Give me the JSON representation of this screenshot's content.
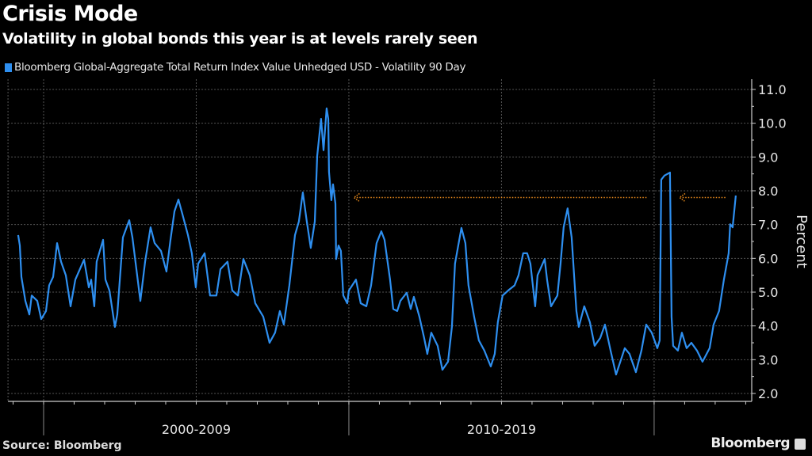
{
  "header": {
    "title": "Crisis Mode",
    "subtitle": "Volatility in global bonds this year is at levels rarely seen"
  },
  "footer": {
    "source": "Source: Bloomberg",
    "brand": "Bloomberg"
  },
  "colors": {
    "background": "#000000",
    "series": "#2e8ff0",
    "annotation": "#e8891b",
    "grid": "#555555",
    "axis": "#cccccc"
  },
  "chart_data": {
    "type": "line",
    "title": "Crisis Mode",
    "subtitle": "Volatility in global bonds this year is at levels rarely seen",
    "ylabel": "Percent",
    "ylim": [
      2.0,
      11.0
    ],
    "yticks": [
      "2.0",
      "3.0",
      "4.0",
      "5.0",
      "6.0",
      "7.0",
      "8.0",
      "9.0",
      "10.0",
      "11.0"
    ],
    "xlim": [
      "1998-11-01",
      "2023-02-01"
    ],
    "x_category_labels": [
      {
        "label": "2000-2009",
        "from": "2000-01-01",
        "to": "2010-01-01"
      },
      {
        "label": "2010-2019",
        "from": "2010-01-01",
        "to": "2020-01-01"
      }
    ],
    "legend": "top-left",
    "grid": true,
    "series": [
      {
        "name": "Bloomberg Global-Aggregate Total Return Index Value Unhedged USD - Volatility 90 Day",
        "points": [
          [
            "1999-03-01",
            6.69
          ],
          [
            "1999-03-20",
            6.38
          ],
          [
            "1999-04-09",
            5.45
          ],
          [
            "1999-05-26",
            4.74
          ],
          [
            "1999-07-13",
            4.34
          ],
          [
            "1999-08-11",
            4.9
          ],
          [
            "1999-10-16",
            4.74
          ],
          [
            "1999-12-03",
            4.2
          ],
          [
            "2000-01-29",
            4.44
          ],
          [
            "2000-03-06",
            5.2
          ],
          [
            "2000-04-23",
            5.45
          ],
          [
            "2000-06-10",
            6.45
          ],
          [
            "2000-07-27",
            5.9
          ],
          [
            "2000-09-23",
            5.5
          ],
          [
            "2000-11-19",
            4.58
          ],
          [
            "2001-01-15",
            5.37
          ],
          [
            "2001-04-28",
            5.96
          ],
          [
            "2001-06-24",
            5.14
          ],
          [
            "2001-07-22",
            5.37
          ],
          [
            "2001-08-29",
            4.58
          ],
          [
            "2001-09-27",
            5.9
          ],
          [
            "2001-12-12",
            6.55
          ],
          [
            "2002-01-10",
            5.37
          ],
          [
            "2002-02-27",
            5.05
          ],
          [
            "2002-05-02",
            3.97
          ],
          [
            "2002-05-30",
            4.34
          ],
          [
            "2002-08-06",
            6.62
          ],
          [
            "2002-10-21",
            7.13
          ],
          [
            "2002-11-28",
            6.62
          ],
          [
            "2003-03-02",
            4.74
          ],
          [
            "2003-04-28",
            5.9
          ],
          [
            "2003-07-03",
            6.92
          ],
          [
            "2003-08-20",
            6.45
          ],
          [
            "2003-11-05",
            6.22
          ],
          [
            "2004-01-10",
            5.61
          ],
          [
            "2004-02-27",
            6.55
          ],
          [
            "2004-04-14",
            7.39
          ],
          [
            "2004-05-31",
            7.74
          ],
          [
            "2004-07-17",
            7.32
          ],
          [
            "2004-09-23",
            6.69
          ],
          [
            "2004-11-09",
            6.15
          ],
          [
            "2004-12-26",
            5.14
          ],
          [
            "2005-01-24",
            5.84
          ],
          [
            "2005-04-09",
            6.15
          ],
          [
            "2005-06-14",
            4.9
          ],
          [
            "2005-08-29",
            4.9
          ],
          [
            "2005-10-16",
            5.68
          ],
          [
            "2006-01-10",
            5.9
          ],
          [
            "2006-03-06",
            5.05
          ],
          [
            "2006-05-12",
            4.9
          ],
          [
            "2006-07-17",
            5.98
          ],
          [
            "2006-10-02",
            5.5
          ],
          [
            "2006-12-07",
            4.67
          ],
          [
            "2007-03-11",
            4.27
          ],
          [
            "2007-05-25",
            3.5
          ],
          [
            "2007-08-01",
            3.8
          ],
          [
            "2007-09-27",
            4.44
          ],
          [
            "2007-11-14",
            4.04
          ],
          [
            "2008-01-19",
            5.2
          ],
          [
            "2008-03-25",
            6.69
          ],
          [
            "2008-05-11",
            7.09
          ],
          [
            "2008-06-28",
            7.95
          ],
          [
            "2008-08-15",
            7.09
          ],
          [
            "2008-10-02",
            6.31
          ],
          [
            "2008-11-19",
            7.09
          ],
          [
            "2008-12-17",
            9.03
          ],
          [
            "2009-02-03",
            10.13
          ],
          [
            "2009-03-02",
            9.2
          ],
          [
            "2009-04-09",
            10.44
          ],
          [
            "2009-04-28",
            10.13
          ],
          [
            "2009-05-07",
            8.56
          ],
          [
            "2009-06-05",
            7.72
          ],
          [
            "2009-06-24",
            8.19
          ],
          [
            "2009-07-22",
            7.62
          ],
          [
            "2009-08-01",
            5.98
          ],
          [
            "2009-08-29",
            6.38
          ],
          [
            "2009-09-27",
            6.22
          ],
          [
            "2009-10-25",
            4.9
          ],
          [
            "2009-12-12",
            4.67
          ],
          [
            "2010-01-01",
            5.05
          ],
          [
            "2010-03-25",
            5.37
          ],
          [
            "2010-05-21",
            4.67
          ],
          [
            "2010-07-27",
            4.58
          ],
          [
            "2010-09-23",
            5.2
          ],
          [
            "2010-11-28",
            6.45
          ],
          [
            "2011-01-24",
            6.8
          ],
          [
            "2011-03-01",
            6.55
          ],
          [
            "2011-05-07",
            5.37
          ],
          [
            "2011-06-14",
            4.5
          ],
          [
            "2011-08-01",
            4.44
          ],
          [
            "2011-09-08",
            4.74
          ],
          [
            "2011-11-23",
            4.98
          ],
          [
            "2012-01-10",
            4.5
          ],
          [
            "2012-02-17",
            4.86
          ],
          [
            "2012-04-23",
            4.27
          ],
          [
            "2012-06-19",
            3.64
          ],
          [
            "2012-07-26",
            3.17
          ],
          [
            "2012-09-13",
            3.8
          ],
          [
            "2012-11-28",
            3.41
          ],
          [
            "2013-01-24",
            2.7
          ],
          [
            "2013-03-30",
            2.94
          ],
          [
            "2013-05-16",
            3.97
          ],
          [
            "2013-06-23",
            5.84
          ],
          [
            "2013-08-01",
            6.38
          ],
          [
            "2013-09-08",
            6.9
          ],
          [
            "2013-10-25",
            6.45
          ],
          [
            "2013-12-02",
            5.2
          ],
          [
            "2014-02-08",
            4.27
          ],
          [
            "2014-04-04",
            3.57
          ],
          [
            "2014-06-09",
            3.27
          ],
          [
            "2014-08-24",
            2.8
          ],
          [
            "2014-10-11",
            3.17
          ],
          [
            "2014-11-18",
            4.11
          ],
          [
            "2015-01-14",
            4.9
          ],
          [
            "2015-03-20",
            5.05
          ],
          [
            "2015-06-05",
            5.2
          ],
          [
            "2015-07-22",
            5.5
          ],
          [
            "2015-09-17",
            6.15
          ],
          [
            "2015-11-04",
            6.15
          ],
          [
            "2015-12-12",
            5.84
          ],
          [
            "2016-02-08",
            4.58
          ],
          [
            "2016-03-06",
            5.5
          ],
          [
            "2016-05-30",
            5.98
          ],
          [
            "2016-06-28",
            5.37
          ],
          [
            "2016-08-15",
            4.58
          ],
          [
            "2016-10-30",
            4.9
          ],
          [
            "2016-12-07",
            5.84
          ],
          [
            "2017-01-14",
            6.92
          ],
          [
            "2017-03-01",
            7.48
          ],
          [
            "2017-04-18",
            6.62
          ],
          [
            "2017-06-14",
            4.44
          ],
          [
            "2017-07-12",
            3.97
          ],
          [
            "2017-09-17",
            4.58
          ],
          [
            "2017-11-23",
            4.11
          ],
          [
            "2018-01-19",
            3.41
          ],
          [
            "2018-03-25",
            3.64
          ],
          [
            "2018-05-21",
            4.04
          ],
          [
            "2018-07-27",
            3.27
          ],
          [
            "2018-10-02",
            2.56
          ],
          [
            "2019-01-15",
            3.34
          ],
          [
            "2019-03-11",
            3.17
          ],
          [
            "2019-05-26",
            2.63
          ],
          [
            "2019-08-01",
            3.27
          ],
          [
            "2019-09-27",
            4.04
          ],
          [
            "2019-12-03",
            3.8
          ],
          [
            "2020-02-08",
            3.34
          ],
          [
            "2020-03-06",
            3.57
          ],
          [
            "2020-03-25",
            8.33
          ],
          [
            "2020-05-02",
            8.45
          ],
          [
            "2020-07-08",
            8.54
          ],
          [
            "2020-07-27",
            4.27
          ],
          [
            "2020-08-15",
            3.41
          ],
          [
            "2020-10-11",
            3.27
          ],
          [
            "2020-11-28",
            3.8
          ],
          [
            "2021-01-24",
            3.34
          ],
          [
            "2021-03-20",
            3.5
          ],
          [
            "2021-05-26",
            3.27
          ],
          [
            "2021-08-01",
            2.94
          ],
          [
            "2021-10-25",
            3.34
          ],
          [
            "2021-12-12",
            4.04
          ],
          [
            "2022-02-17",
            4.44
          ],
          [
            "2022-04-14",
            5.37
          ],
          [
            "2022-06-10",
            6.15
          ],
          [
            "2022-06-28",
            7.01
          ],
          [
            "2022-07-27",
            6.92
          ],
          [
            "2022-09-04",
            7.86
          ]
        ]
      }
    ],
    "annotations": [
      {
        "type": "arrow-left",
        "value": 7.8,
        "from": "2019-10-01",
        "to": "2010-03-01"
      },
      {
        "type": "arrow-left",
        "value": 7.8,
        "from": "2022-05-01",
        "to": "2020-11-01"
      }
    ]
  }
}
